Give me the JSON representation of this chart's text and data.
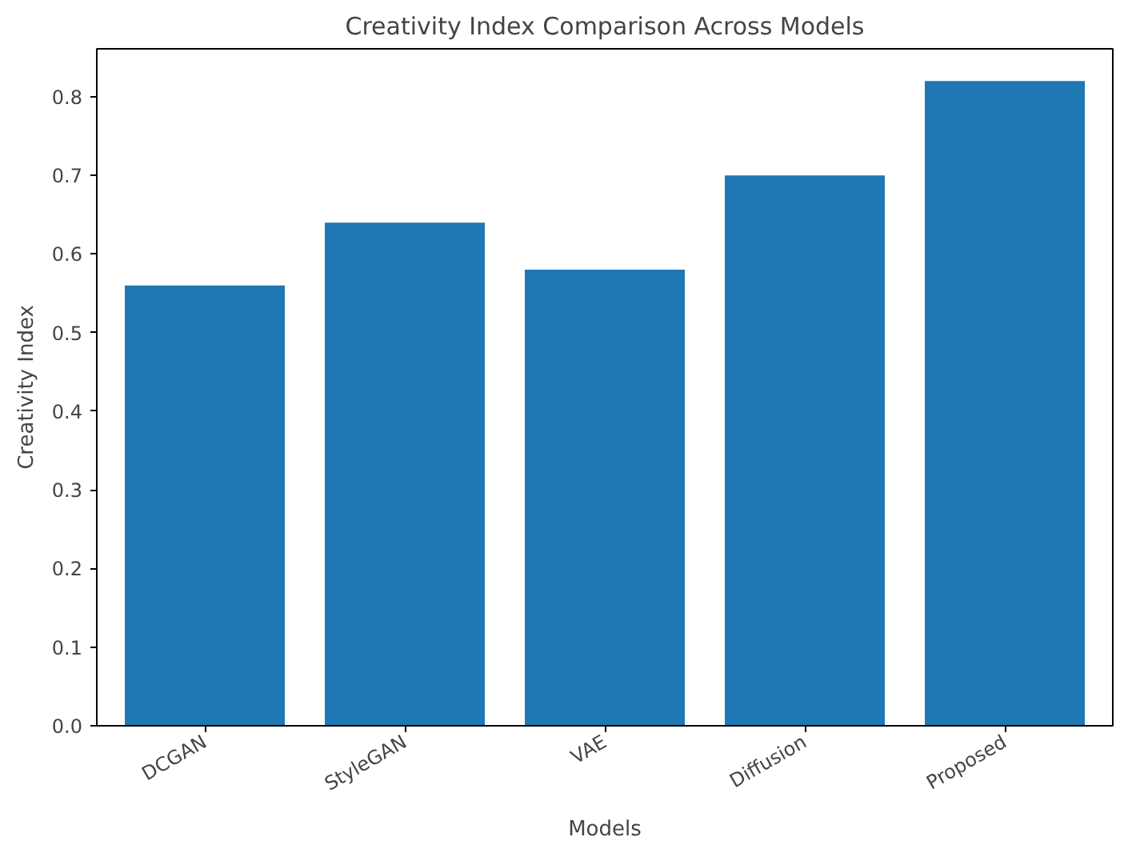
{
  "chart_data": {
    "type": "bar",
    "title": "Creativity Index Comparison Across Models",
    "xlabel": "Models",
    "ylabel": "Creativity Index",
    "categories": [
      "DCGAN",
      "StyleGAN",
      "VAE",
      "Diffusion",
      "Proposed"
    ],
    "values": [
      0.56,
      0.64,
      0.58,
      0.7,
      0.82
    ],
    "color": "#1f77b4",
    "ylim": [
      0,
      0.861
    ],
    "yticks": [
      {
        "value": 0,
        "label": "0.0"
      },
      0.1,
      0.2,
      0.3,
      0.4,
      0.5,
      0.6,
      0.7,
      0.8
    ],
    "grid": false
  }
}
